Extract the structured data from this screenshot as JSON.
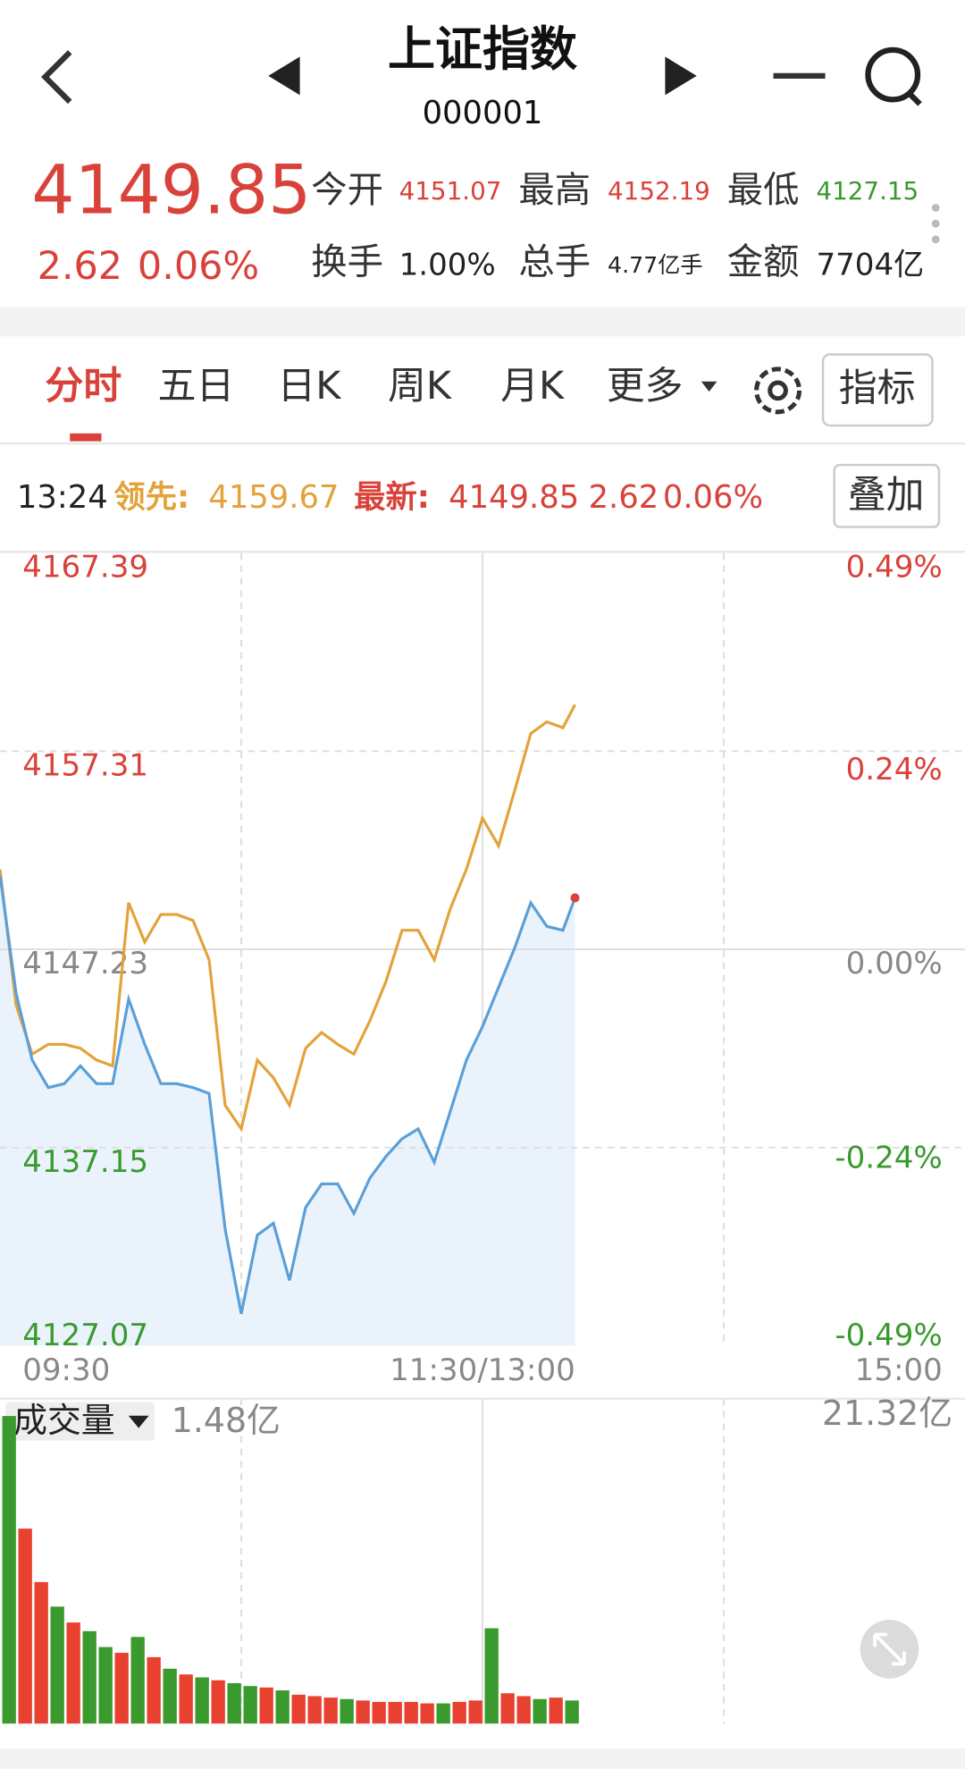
{
  "header": {
    "title": "上证指数",
    "code": "000001"
  },
  "quote": {
    "price": "4149.85",
    "change": "2.62",
    "change_pct": "0.06%",
    "fields": [
      {
        "label": "今开",
        "value": "4151.07"
      },
      {
        "label": "最高",
        "value": "4152.19"
      },
      {
        "label": "最低",
        "value": "4127.15"
      },
      {
        "label": "换手",
        "value": "1.00%"
      },
      {
        "label": "总手",
        "value": "4.77亿手"
      },
      {
        "label": "金额",
        "value": "7704亿"
      }
    ]
  },
  "tabs": [
    "分时",
    "五日",
    "日K",
    "周K",
    "月K",
    "更多"
  ],
  "indicator_button": "指标",
  "info_bar": {
    "time": "13:24",
    "lead_label": "领先:",
    "lead_value": "4159.67",
    "latest_label": "最新:",
    "latest_value": "4149.85",
    "latest_change": "2.62",
    "latest_pct": "0.06%"
  },
  "overlay_button": "叠加",
  "chart_data": [
    {
      "type": "line",
      "x": [
        0,
        4,
        8,
        12,
        16,
        20,
        24,
        28,
        32,
        36,
        40,
        44,
        48,
        52,
        56,
        60,
        64,
        68,
        72,
        76,
        80,
        84,
        88,
        92,
        96,
        100,
        104,
        108,
        112,
        116,
        120,
        124,
        128,
        132,
        136,
        140,
        143
      ],
      "xlim": [
        0,
        240
      ],
      "xticks": [
        {
          "value": 0,
          "label": "09:30"
        },
        {
          "value": 120,
          "label": "11:30/13:00"
        },
        {
          "value": 240,
          "label": "15:00"
        }
      ],
      "ylim": [
        4127.07,
        4167.39
      ],
      "yticks": [
        4167.39,
        4157.31,
        4147.23,
        4137.15,
        4127.07
      ],
      "y2lim": [
        -0.49,
        0.49
      ],
      "y2ticks": [
        {
          "value": 0.49,
          "label": "0.49%"
        },
        {
          "value": 0.24,
          "label": "0.24%"
        },
        {
          "value": 0,
          "label": "0.00%"
        },
        {
          "value": -0.24,
          "label": "-0.24%"
        },
        {
          "value": -0.49,
          "label": "-0.49%"
        }
      ],
      "series": [
        {
          "color": "#5b9fd8",
          "values": [
            4151.0,
            4145.0,
            4141.6,
            4140.2,
            4140.4,
            4141.3,
            4140.4,
            4140.4,
            4144.7,
            4142.4,
            4140.4,
            4140.4,
            4140.2,
            4139.9,
            4133.0,
            4128.7,
            4132.7,
            4133.3,
            4130.4,
            4134.1,
            4135.3,
            4135.3,
            4133.8,
            4135.6,
            4136.7,
            4137.6,
            4138.1,
            4136.4,
            4139.0,
            4141.6,
            4143.3,
            4145.3,
            4147.3,
            4149.6,
            4148.4,
            4148.2,
            4149.85
          ]
        },
        {
          "color": "#e3a23a",
          "values": [
            4151.3,
            4144.4,
            4141.9,
            4142.4,
            4142.4,
            4142.2,
            4141.6,
            4141.3,
            4149.6,
            4147.6,
            4149.0,
            4149.0,
            4148.7,
            4146.7,
            4139.3,
            4138.1,
            4141.6,
            4140.7,
            4139.3,
            4142.2,
            4143.0,
            4142.4,
            4141.9,
            4143.6,
            4145.6,
            4148.2,
            4148.2,
            4146.7,
            4149.3,
            4151.3,
            4153.9,
            4152.5,
            4155.3,
            4158.2,
            4158.8,
            4158.5,
            4159.67
          ]
        }
      ]
    },
    {
      "type": "bar",
      "label": "成交量",
      "current_label": "1.48亿",
      "x": [
        0,
        4,
        8,
        12,
        16,
        20,
        24,
        28,
        32,
        36,
        40,
        44,
        48,
        52,
        56,
        60,
        64,
        68,
        72,
        76,
        80,
        84,
        88,
        92,
        96,
        100,
        104,
        108,
        112,
        116,
        120,
        124,
        128,
        132,
        136,
        140
      ],
      "xlim": [
        0,
        240
      ],
      "values": [
        21.3,
        13.5,
        9.8,
        8.1,
        7.0,
        6.4,
        5.3,
        4.9,
        6.0,
        4.6,
        3.8,
        3.4,
        3.2,
        3.0,
        2.8,
        2.6,
        2.5,
        2.3,
        2.0,
        1.9,
        1.8,
        1.7,
        1.6,
        1.5,
        1.5,
        1.5,
        1.4,
        1.4,
        1.5,
        1.6,
        6.6,
        2.1,
        1.9,
        1.7,
        1.8,
        1.6
      ],
      "colors": [
        "#3a9a2e",
        "#e8412f",
        "#e8412f",
        "#3a9a2e",
        "#e8412f",
        "#3a9a2e",
        "#3a9a2e",
        "#e8412f",
        "#3a9a2e",
        "#e8412f",
        "#3a9a2e",
        "#e8412f",
        "#3a9a2e",
        "#e8412f",
        "#3a9a2e",
        "#3a9a2e",
        "#e8412f",
        "#3a9a2e",
        "#e8412f",
        "#e8412f",
        "#e8412f",
        "#3a9a2e",
        "#e8412f",
        "#e8412f",
        "#e8412f",
        "#e8412f",
        "#e8412f",
        "#3a9a2e",
        "#e8412f",
        "#e8412f",
        "#3a9a2e",
        "#e8412f",
        "#e8412f",
        "#3a9a2e",
        "#e8412f",
        "#3a9a2e"
      ],
      "ylim": [
        0,
        21.32
      ],
      "yticks": [
        {
          "value": 21.32,
          "label": "21.32亿"
        }
      ]
    }
  ]
}
